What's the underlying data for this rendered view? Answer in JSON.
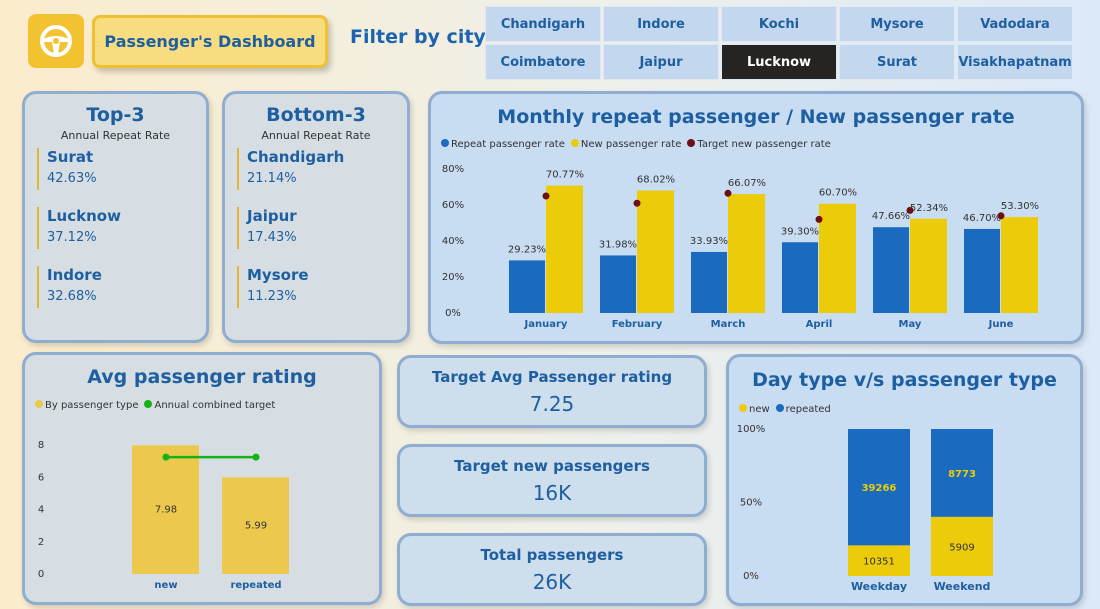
{
  "header": {
    "title": "Passenger's Dashboard",
    "filter_label": "Filter by city",
    "logo_icon": "steering-wheel-icon"
  },
  "cities": [
    {
      "name": "Chandigarh",
      "selected": false
    },
    {
      "name": "Indore",
      "selected": false
    },
    {
      "name": "Kochi",
      "selected": false
    },
    {
      "name": "Mysore",
      "selected": false
    },
    {
      "name": "Vadodara",
      "selected": false
    },
    {
      "name": "Coimbatore",
      "selected": false
    },
    {
      "name": "Jaipur",
      "selected": false
    },
    {
      "name": "Lucknow",
      "selected": true
    },
    {
      "name": "Surat",
      "selected": false
    },
    {
      "name": "Visakhapatnam",
      "selected": false
    }
  ],
  "top3": {
    "title": "Top-3",
    "subtitle": "Annual Repeat Rate",
    "items": [
      {
        "city": "Surat",
        "value": "42.63%"
      },
      {
        "city": "Lucknow",
        "value": "37.12%"
      },
      {
        "city": "Indore",
        "value": "32.68%"
      }
    ]
  },
  "bottom3": {
    "title": "Bottom-3",
    "subtitle": "Annual Repeat Rate",
    "items": [
      {
        "city": "Chandigarh",
        "value": "21.14%"
      },
      {
        "city": "Jaipur",
        "value": "17.43%"
      },
      {
        "city": "Mysore",
        "value": "11.23%"
      }
    ]
  },
  "kpis": [
    {
      "label": "Target Avg Passenger rating",
      "value": "7.25"
    },
    {
      "label": "Target new passengers",
      "value": "16K"
    },
    {
      "label": "Total passengers",
      "value": "26K"
    }
  ],
  "colors": {
    "blue": "#1a6bbf",
    "yellow": "#ebcb0a",
    "target": "#6b0f12",
    "rating_bar": "#ecc84c",
    "green": "#14b414"
  },
  "chart_data": [
    {
      "type": "bar",
      "title": "Monthly repeat passenger / New passenger rate",
      "categories": [
        "January",
        "February",
        "March",
        "April",
        "May",
        "June"
      ],
      "series": [
        {
          "name": "Repeat passenger rate",
          "values": [
            29.23,
            31.98,
            33.93,
            39.3,
            47.66,
            46.7
          ],
          "labels": [
            "29.23%",
            "31.98%",
            "33.93%",
            "39.30%",
            "47.66%",
            "46.70%"
          ]
        },
        {
          "name": "New passenger rate",
          "values": [
            70.77,
            68.02,
            66.07,
            60.7,
            52.34,
            53.3
          ],
          "labels": [
            "70.77%",
            "68.02%",
            "66.07%",
            "60.70%",
            "52.34%",
            "53.30%"
          ]
        },
        {
          "name": "Target new passenger rate",
          "type": "scatter",
          "values": [
            65,
            61,
            66.5,
            52,
            57,
            54
          ]
        }
      ],
      "yticks": [
        "0%",
        "20%",
        "40%",
        "60%",
        "80%"
      ],
      "ylim": [
        0,
        80
      ],
      "legend": "top-left"
    },
    {
      "type": "bar",
      "title": "Avg passenger rating",
      "categories": [
        "new",
        "repeated"
      ],
      "series": [
        {
          "name": "By passenger type",
          "values": [
            7.98,
            5.99
          ],
          "labels": [
            "7.98",
            "5.99"
          ]
        },
        {
          "name": "Annual combined target",
          "type": "line",
          "values": [
            7.25,
            7.25
          ]
        }
      ],
      "yticks": [
        "0",
        "2",
        "4",
        "6",
        "8"
      ],
      "ylim": [
        0,
        8
      ],
      "legend": "top-left"
    },
    {
      "type": "bar",
      "stacked": "100%",
      "title": "Day type v/s passenger type",
      "categories": [
        "Weekday",
        "Weekend"
      ],
      "series": [
        {
          "name": "new",
          "values": [
            10351,
            5909
          ],
          "labels": [
            "10351",
            "5909"
          ]
        },
        {
          "name": "repeated",
          "values": [
            39266,
            8773
          ],
          "labels": [
            "39266",
            "8773"
          ]
        }
      ],
      "yticks": [
        "0%",
        "50%",
        "100%"
      ],
      "ylim": [
        0,
        100
      ],
      "legend": "top-left"
    }
  ]
}
